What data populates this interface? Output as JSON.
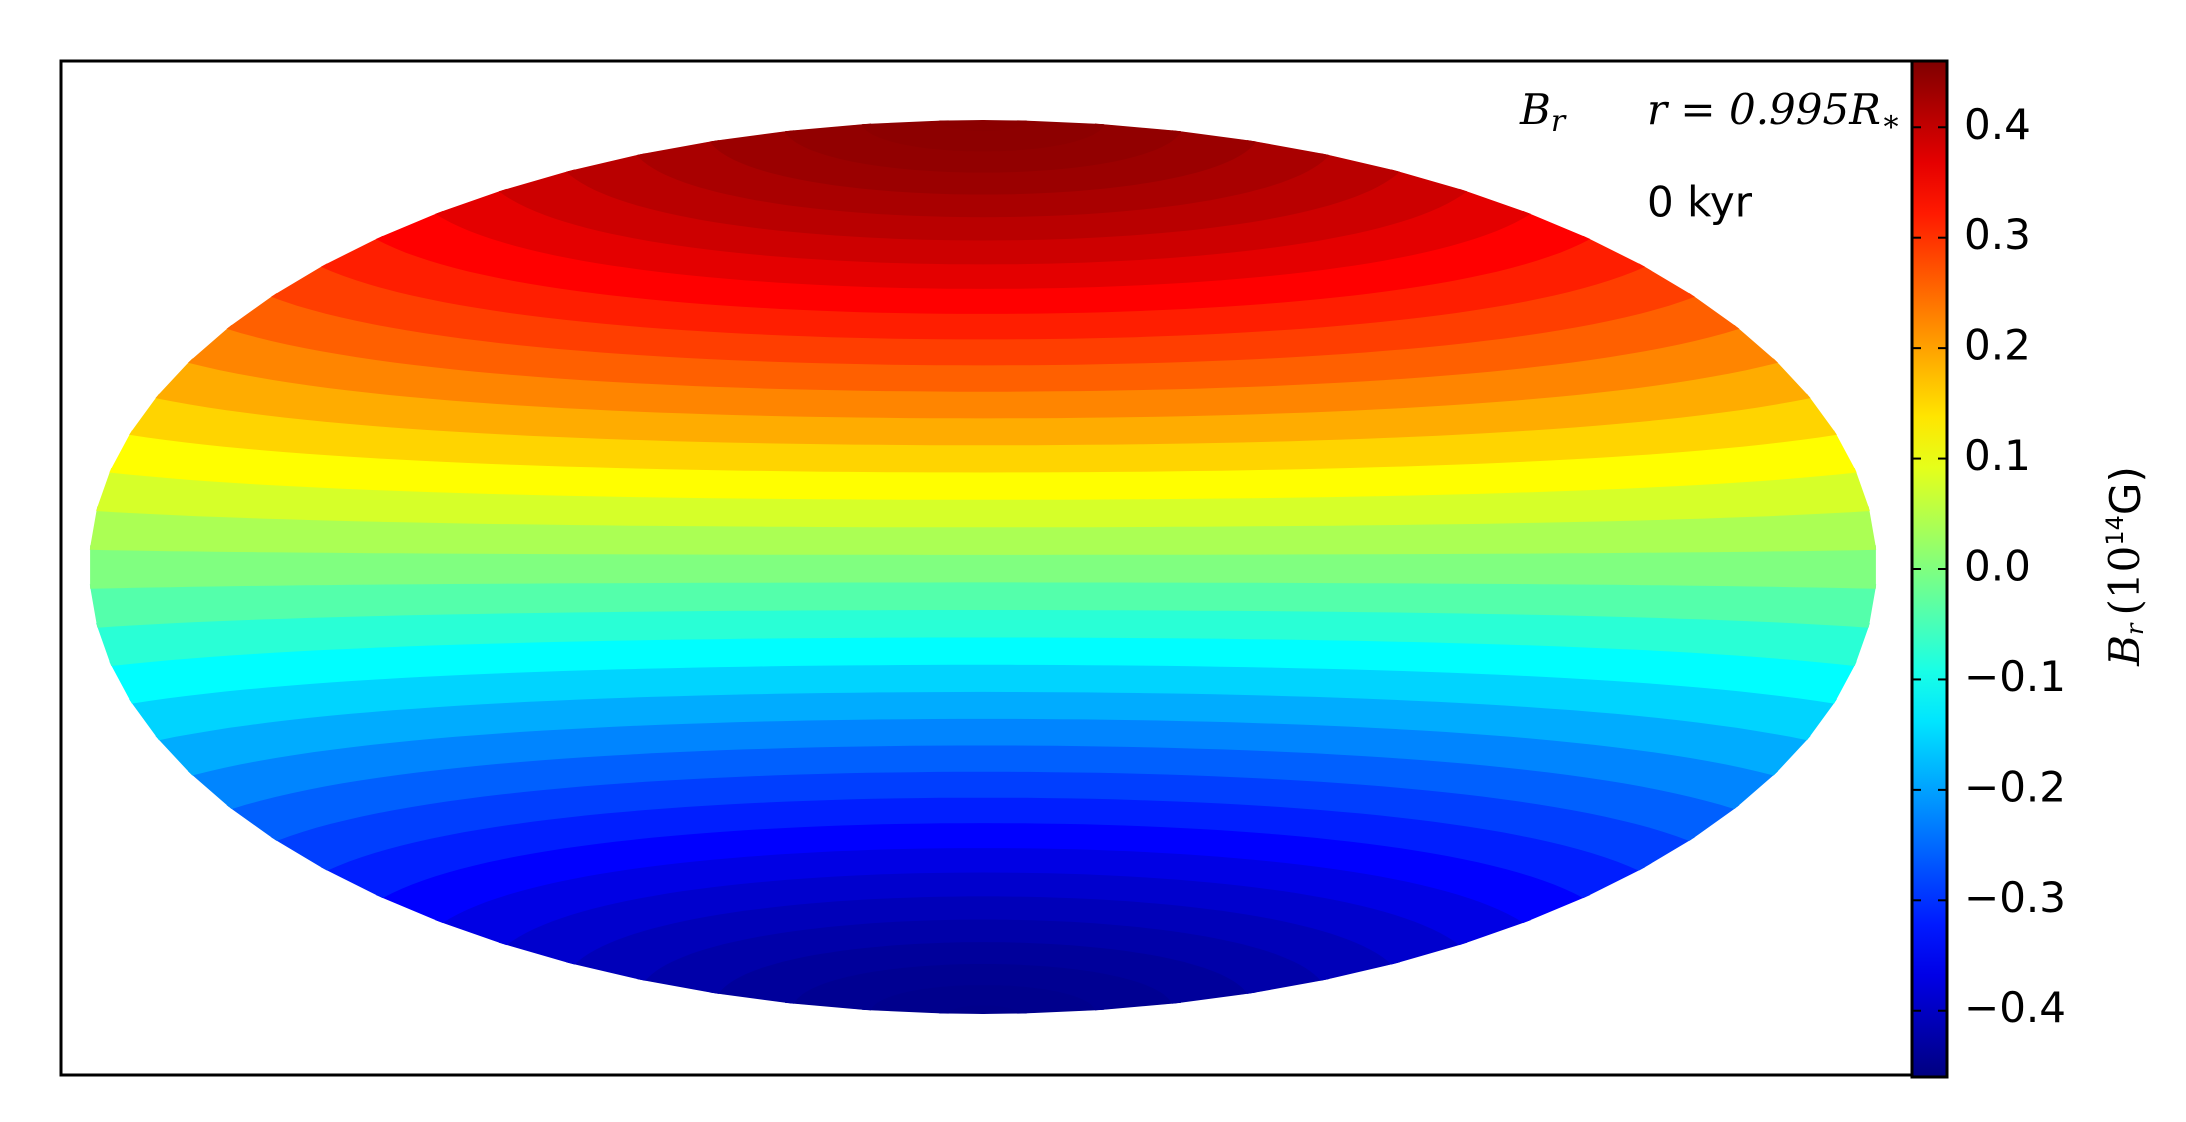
{
  "chart_data": {
    "type": "map",
    "projection": "hammer",
    "colormap": "jet",
    "annotations": [
      {
        "symbol": "B",
        "sub": "r"
      },
      {
        "text": "r = 0.995R",
        "sub": "∗"
      },
      "0 kyr"
    ],
    "colorbar_label": {
      "symbol": "B",
      "sub": "r",
      "unit_open": "(10",
      "exponent": "14",
      "unit_close": "G)"
    },
    "y": [
      -90,
      -85,
      -80,
      -75,
      -70,
      -65,
      -60,
      -55,
      -50,
      -45,
      -40,
      -35,
      -30,
      -25,
      -20,
      -15,
      -10,
      -5,
      0,
      5,
      10,
      15,
      20,
      25,
      30,
      35,
      40,
      45,
      50,
      55,
      60,
      65,
      70,
      75,
      80,
      85,
      90
    ],
    "values": [
      -0.45,
      -0.448,
      -0.443,
      -0.435,
      -0.423,
      -0.408,
      -0.39,
      -0.369,
      -0.345,
      -0.318,
      -0.289,
      -0.258,
      -0.225,
      -0.19,
      -0.154,
      -0.116,
      -0.078,
      -0.039,
      0,
      0.039,
      0.078,
      0.116,
      0.154,
      0.19,
      0.225,
      0.258,
      0.289,
      0.318,
      0.345,
      0.369,
      0.39,
      0.408,
      0.423,
      0.435,
      0.443,
      0.448,
      0.45
    ],
    "clim": [
      -0.46,
      0.46
    ],
    "cticks": [
      {
        "value": -0.4,
        "label": "−0.4"
      },
      {
        "value": -0.3,
        "label": "−0.3"
      },
      {
        "value": -0.2,
        "label": "−0.2"
      },
      {
        "value": -0.1,
        "label": "−0.1"
      },
      {
        "value": 0,
        "label": "0.0"
      },
      0.1,
      0.2,
      0.3,
      0.4
    ]
  }
}
